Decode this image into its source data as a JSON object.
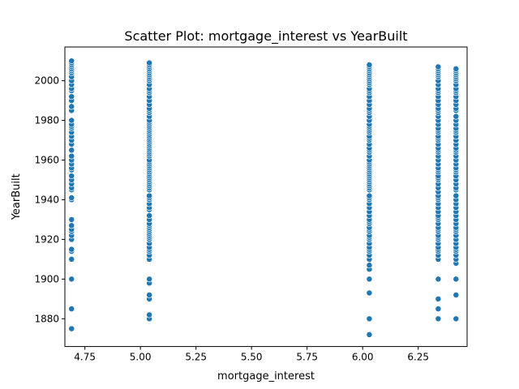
{
  "chart_data": {
    "type": "scatter",
    "title": "Scatter Plot: mortgage_interest vs YearBuilt",
    "xlabel": "mortgage_interest",
    "ylabel": "YearBuilt",
    "xlim": [
      4.66,
      6.47
    ],
    "ylim": [
      1866,
      2017
    ],
    "xticks": [
      4.75,
      5.0,
      5.25,
      5.5,
      5.75,
      6.0,
      6.25
    ],
    "xtick_labels": [
      "4.75",
      "5.00",
      "5.25",
      "5.50",
      "5.75",
      "6.00",
      "6.25"
    ],
    "yticks": [
      1880,
      1900,
      1920,
      1940,
      1960,
      1980,
      2000
    ],
    "ytick_labels": [
      "1880",
      "1900",
      "1920",
      "1940",
      "1960",
      "1980",
      "2000"
    ],
    "grid": false,
    "legend": "none",
    "marker_color": "#1f77b4",
    "groups": [
      {
        "x": 4.69,
        "y": [
          1875,
          1885,
          1900,
          1910,
          1914,
          1915,
          1920,
          1922,
          1924,
          1925,
          1927,
          1930,
          1940,
          1941,
          1945,
          1946,
          1948,
          1950,
          1952,
          1955,
          1956,
          1958,
          1960,
          1962,
          1965,
          1968,
          1970,
          1972,
          1974,
          1976,
          1977,
          1978,
          1980,
          1985,
          1987,
          1990,
          1992,
          1995,
          1996,
          1998,
          2000,
          2002,
          2004,
          2005,
          2006,
          2007,
          2008,
          2009,
          2010
        ]
      },
      {
        "x": 5.04,
        "y": [
          1880,
          1882,
          1890,
          1892,
          1898,
          1900,
          1910,
          1912,
          1914,
          1915,
          1916,
          1918,
          1920,
          1921,
          1922,
          1923,
          1924,
          1925,
          1926,
          1927,
          1928,
          1930,
          1932,
          1935,
          1936,
          1938,
          1940,
          1941,
          1942,
          1945,
          1946,
          1947,
          1948,
          1949,
          1950,
          1951,
          1952,
          1953,
          1954,
          1955,
          1956,
          1957,
          1958,
          1959,
          1960,
          1962,
          1963,
          1964,
          1965,
          1966,
          1967,
          1968,
          1969,
          1970,
          1971,
          1972,
          1973,
          1974,
          1975,
          1976,
          1977,
          1978,
          1979,
          1980,
          1982,
          1984,
          1985,
          1986,
          1988,
          1990,
          1992,
          1994,
          1995,
          1996,
          1998,
          2000,
          2001,
          2002,
          2003,
          2004,
          2005,
          2006,
          2007,
          2008,
          2009
        ]
      },
      {
        "x": 6.03,
        "y": [
          1872,
          1880,
          1893,
          1900,
          1905,
          1907,
          1910,
          1912,
          1914,
          1915,
          1916,
          1918,
          1920,
          1921,
          1922,
          1924,
          1925,
          1926,
          1928,
          1929,
          1930,
          1932,
          1934,
          1936,
          1938,
          1940,
          1941,
          1942,
          1945,
          1946,
          1947,
          1948,
          1949,
          1950,
          1951,
          1952,
          1953,
          1954,
          1955,
          1956,
          1957,
          1958,
          1959,
          1960,
          1962,
          1964,
          1965,
          1966,
          1968,
          1970,
          1971,
          1972,
          1974,
          1975,
          1976,
          1977,
          1978,
          1980,
          1982,
          1984,
          1985,
          1986,
          1988,
          1990,
          1992,
          1994,
          1995,
          1996,
          1998,
          1999,
          2000,
          2001,
          2002,
          2003,
          2004,
          2005,
          2006,
          2007,
          2008
        ]
      },
      {
        "x": 6.34,
        "y": [
          1880,
          1885,
          1890,
          1900,
          1910,
          1912,
          1914,
          1915,
          1916,
          1918,
          1920,
          1921,
          1922,
          1924,
          1925,
          1926,
          1928,
          1930,
          1931,
          1932,
          1934,
          1936,
          1938,
          1940,
          1941,
          1942,
          1944,
          1946,
          1948,
          1950,
          1951,
          1952,
          1954,
          1955,
          1956,
          1958,
          1960,
          1962,
          1964,
          1965,
          1966,
          1968,
          1970,
          1971,
          1972,
          1974,
          1975,
          1976,
          1978,
          1980,
          1982,
          1984,
          1985,
          1986,
          1988,
          1990,
          1992,
          1994,
          1995,
          1996,
          1998,
          2000,
          2002,
          2003,
          2004,
          2005,
          2006,
          2007
        ]
      },
      {
        "x": 6.42,
        "y": [
          1880,
          1892,
          1900,
          1908,
          1910,
          1912,
          1914,
          1915,
          1916,
          1918,
          1920,
          1922,
          1924,
          1925,
          1926,
          1928,
          1930,
          1932,
          1934,
          1936,
          1938,
          1940,
          1942,
          1945,
          1946,
          1948,
          1950,
          1952,
          1954,
          1955,
          1956,
          1958,
          1960,
          1962,
          1964,
          1965,
          1966,
          1968,
          1970,
          1972,
          1974,
          1975,
          1976,
          1978,
          1980,
          1982,
          1985,
          1986,
          1988,
          1990,
          1992,
          1994,
          1995,
          1996,
          1998,
          2000,
          2001,
          2002,
          2003,
          2004,
          2005,
          2006
        ]
      }
    ]
  }
}
